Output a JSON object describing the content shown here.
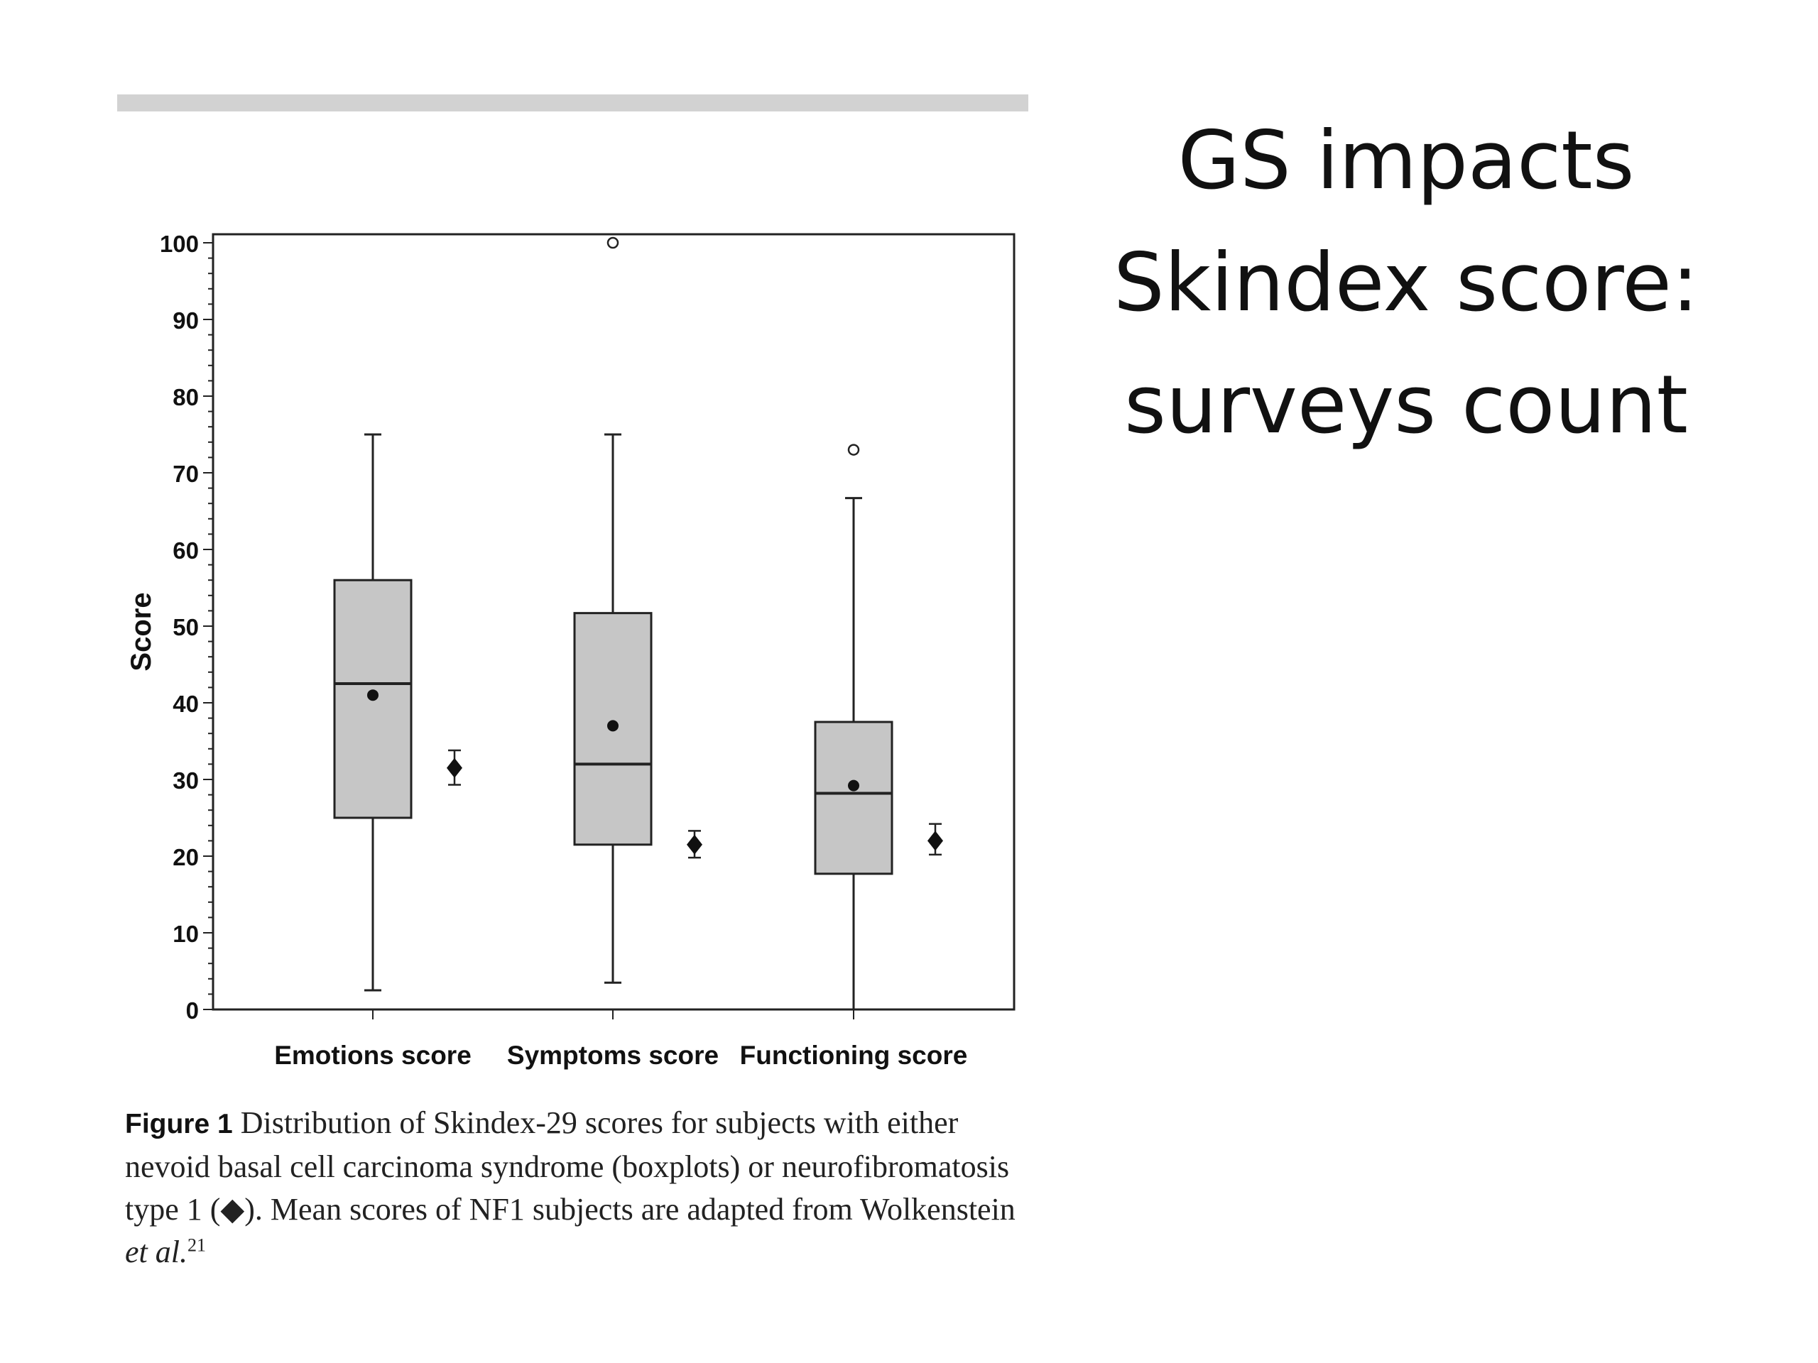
{
  "slide": {
    "title_lines": [
      "GS impacts",
      "Skindex score:",
      "surveys count"
    ]
  },
  "caption": {
    "label": "Figure 1",
    "text_1": " Distribution of Skindex-29 scores for subjects with either nevoid basal cell carcinoma syndrome (boxplots) or neurofibromatosis type 1 (◆). Mean scores of NF1 subjects are adapted from Wolkenstein ",
    "text_italic": "et al.",
    "ref": "21"
  },
  "chart_data": {
    "type": "boxplot",
    "ylabel": "Score",
    "xlabel": "",
    "ylim": [
      0,
      100
    ],
    "yticks": [
      "0",
      "10",
      "20",
      "30",
      "40",
      "50",
      "60",
      "70",
      "80",
      "90",
      "100"
    ],
    "grid": false,
    "categories": [
      "Emotions score",
      "Symptoms score",
      "Functioning score"
    ],
    "series": [
      {
        "name": "nevoid basal cell carcinoma syndrome",
        "boxes": [
          {
            "whisker_low": 2.5,
            "q1": 25,
            "median": 42.5,
            "q3": 56,
            "whisker_high": 75,
            "mean": 41,
            "outliers": []
          },
          {
            "whisker_low": 3.5,
            "q1": 21.5,
            "median": 32,
            "q3": 51.7,
            "whisker_high": 75,
            "mean": 37,
            "outliers": [
              100
            ]
          },
          {
            "whisker_low": 0,
            "q1": 17.7,
            "median": 28.2,
            "q3": 37.5,
            "whisker_high": 66.7,
            "mean": 29.2,
            "outliers": [
              73
            ]
          }
        ]
      },
      {
        "name": "neurofibromatosis type 1",
        "points": [
          {
            "mean": 31.5,
            "low": 29.3,
            "high": 33.8
          },
          {
            "mean": 21.5,
            "low": 19.8,
            "high": 23.3
          },
          {
            "mean": 22,
            "low": 20.2,
            "high": 24.2
          }
        ]
      }
    ]
  }
}
